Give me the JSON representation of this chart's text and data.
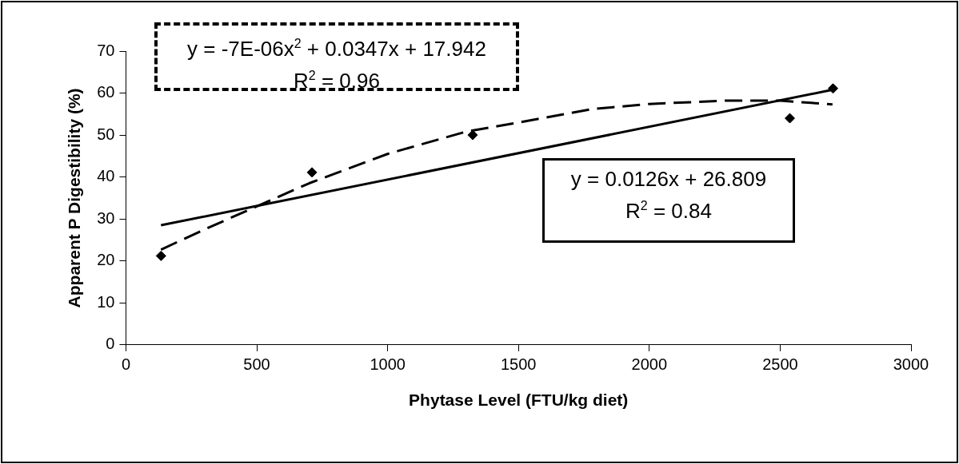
{
  "chart_data": {
    "type": "scatter",
    "xlabel": "Phytase Level (FTU/kg diet)",
    "ylabel": "Apparent P Digestibility (%)",
    "xlim": [
      0,
      3000
    ],
    "xticks": [
      0,
      500,
      1000,
      1500,
      2000,
      2500,
      3000
    ],
    "ylim": [
      0,
      70
    ],
    "yticks": [
      0,
      10,
      20,
      30,
      40,
      50,
      60,
      70
    ],
    "grid": false,
    "legend": false,
    "series": [
      {
        "color": "#000000",
        "marker": "diamond",
        "x": [
          134,
          711,
          1325,
          2537,
          2702
        ],
        "values": [
          21.2,
          41.1,
          50,
          54,
          61.1
        ]
      },
      {
        "type": "line",
        "color": "#000000",
        "marker": "none",
        "line_style": "dashed",
        "x": [
          134,
          300,
          500,
          700,
          1000,
          1300,
          1500,
          1784,
          2000,
          2292,
          2500,
          2700
        ],
        "values": [
          22.7,
          27.5,
          33,
          38.5,
          45.5,
          50.8,
          53,
          56.2,
          57.4,
          58.2,
          58.2,
          57.3
        ]
      },
      {
        "type": "line",
        "color": "#000000",
        "marker": "none",
        "line_style": "solid",
        "x": [
          134,
          2702
        ],
        "values": [
          28.5,
          60.8
        ]
      }
    ],
    "annotations": [
      "y = -7E-06x$^{2}$ + 0.0347x + 17.942\nR$^{2}$ = 0.96",
      "y = 0.0126x + 26.809\nR$^{2}$ = 0.84"
    ]
  }
}
